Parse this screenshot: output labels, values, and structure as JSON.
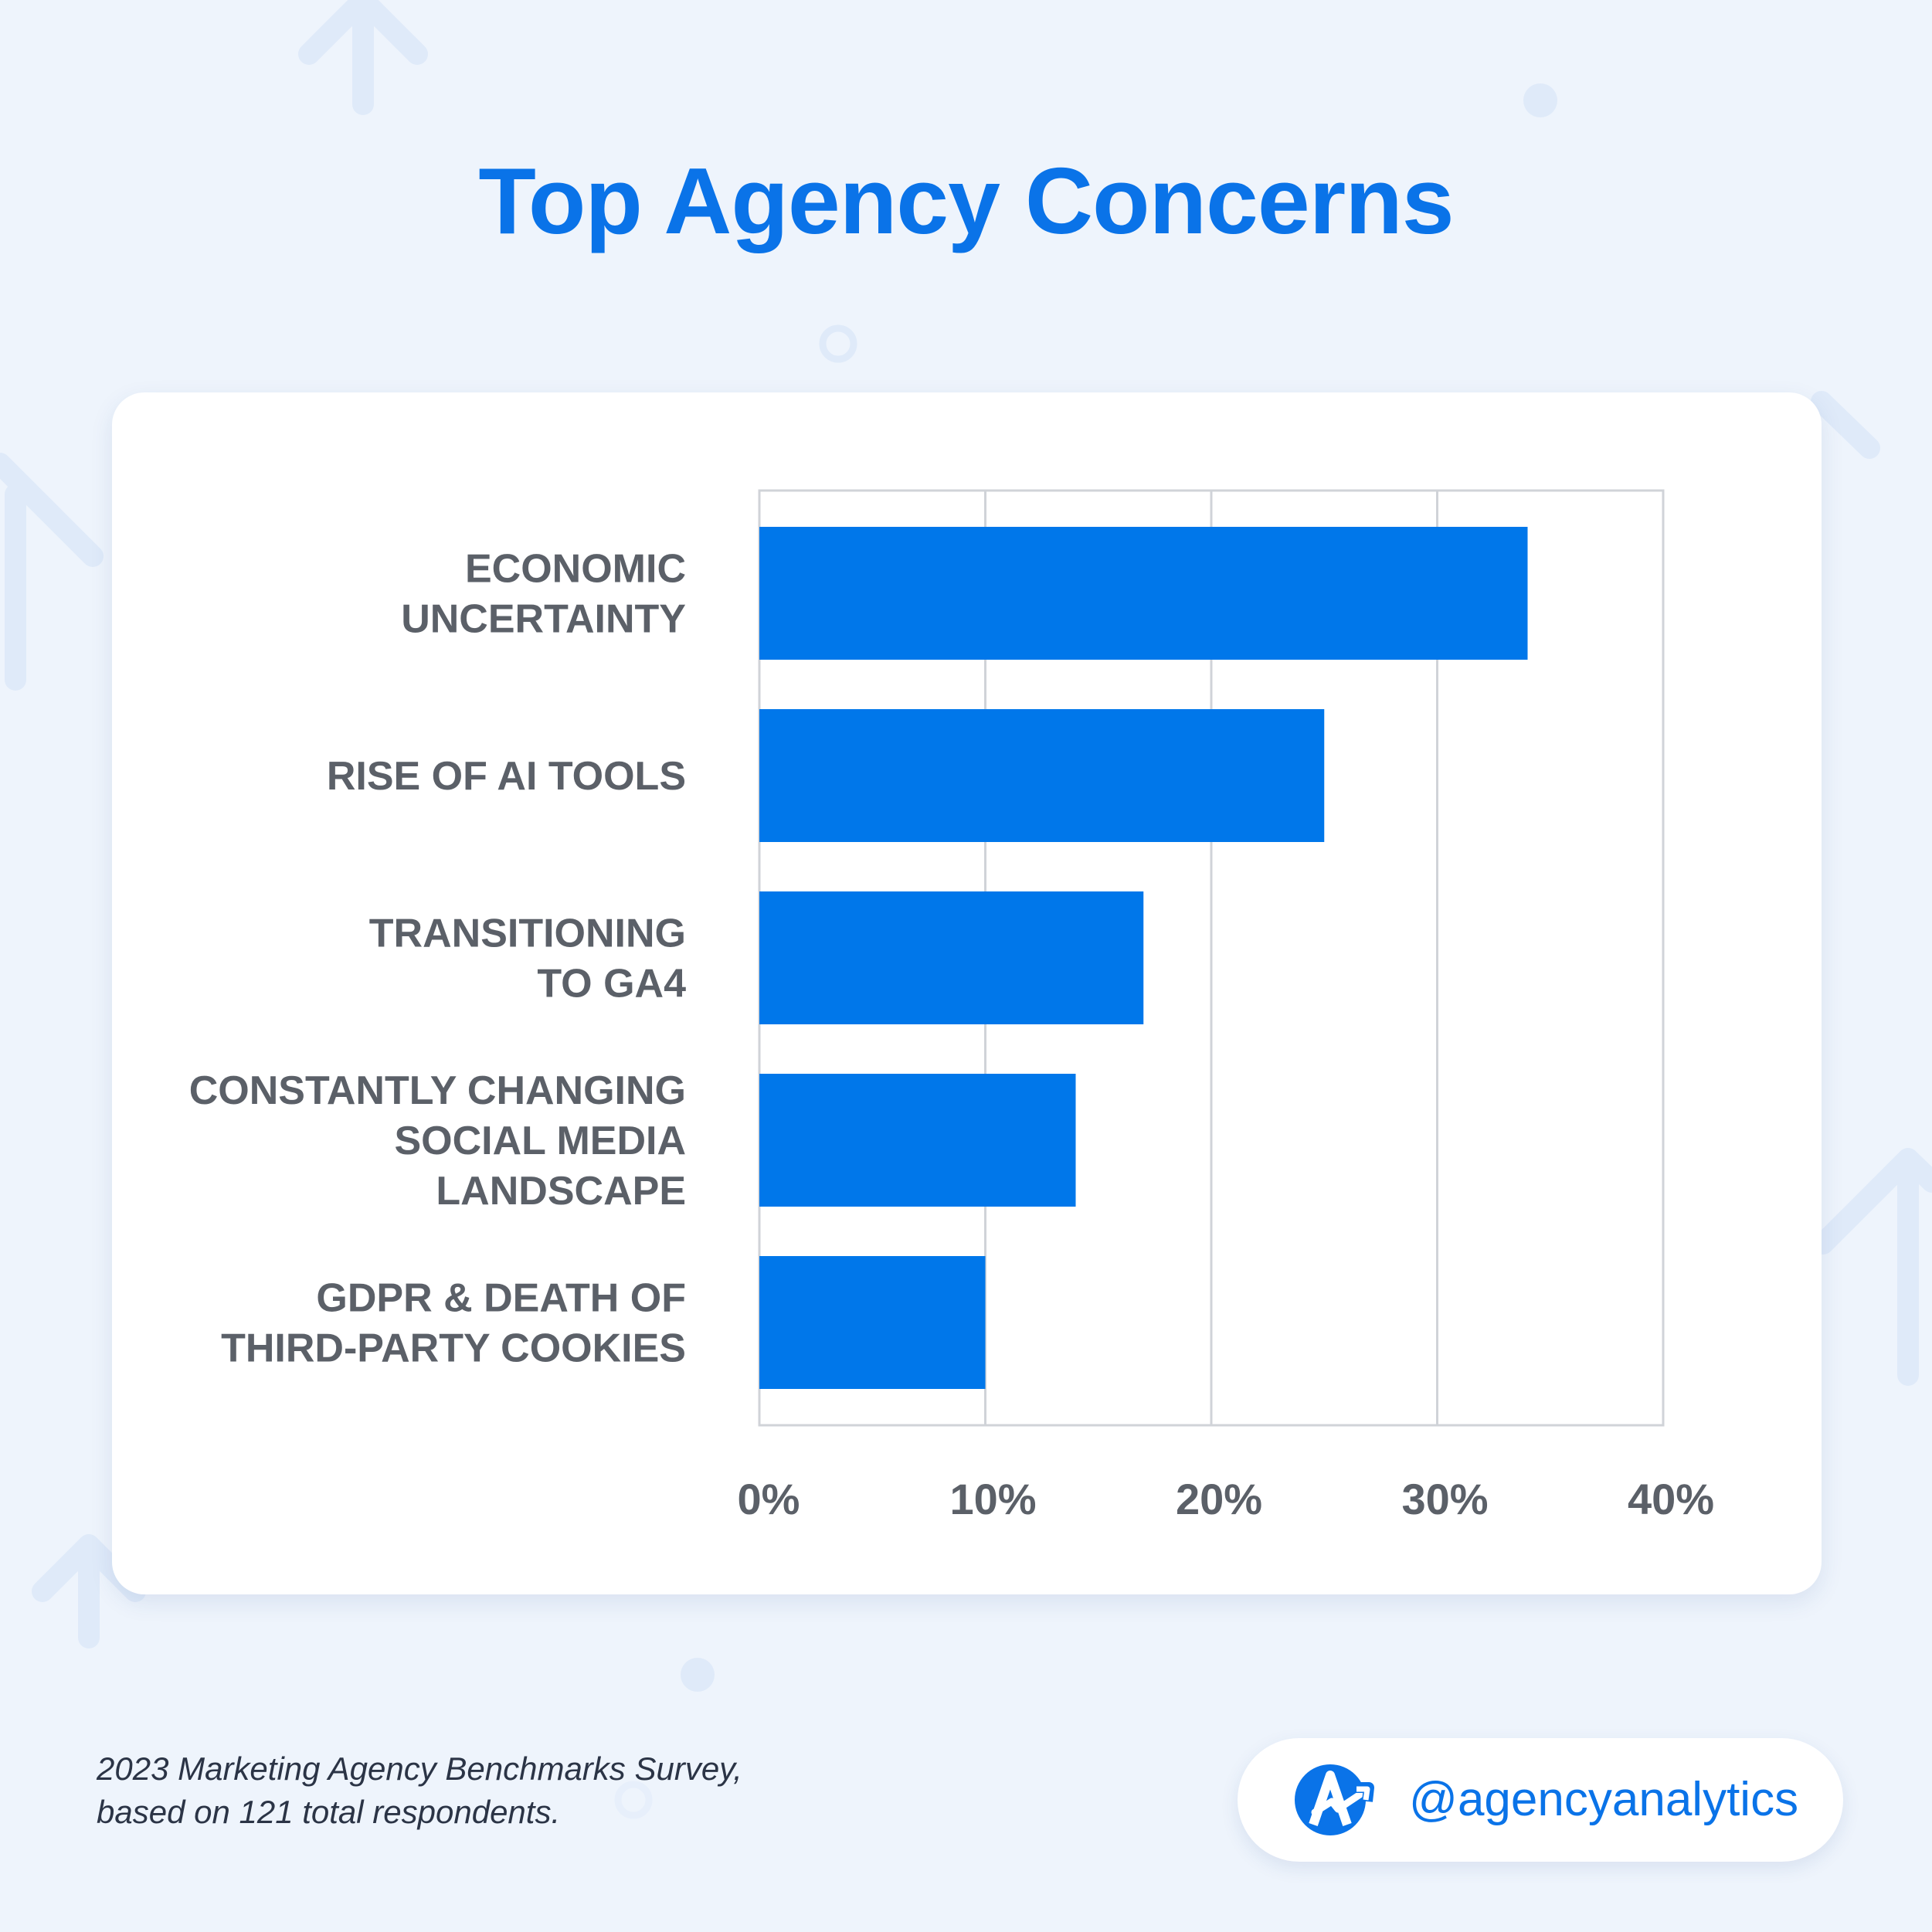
{
  "title": "Top Agency Concerns",
  "colors": {
    "background": "#eef4fc",
    "accent": "#0a73e8",
    "bar": "#0077ea",
    "label": "#5b6068",
    "grid": "#d0d3d8"
  },
  "chart_data": {
    "type": "bar",
    "orientation": "horizontal",
    "title": "Top Agency Concerns",
    "categories": [
      [
        "ECONOMIC",
        "UNCERTAINTY"
      ],
      [
        "RISE OF AI TOOLS"
      ],
      [
        "TRANSITIONING",
        "TO GA4"
      ],
      [
        "CONSTANTLY CHANGING",
        "SOCIAL MEDIA",
        "LANDSCAPE"
      ],
      [
        "GDPR & DEATH OF",
        "THIRD-PARTY COOKIES"
      ]
    ],
    "values": [
      34,
      25,
      17,
      14,
      10
    ],
    "x_ticks": [
      "0%",
      "10%",
      "20%",
      "30%",
      "40%"
    ],
    "xlim": [
      0,
      40
    ],
    "xlabel": "",
    "ylabel": "",
    "grid": true
  },
  "footer": {
    "source_line1": "2023 Marketing Agency Benchmarks Survey,",
    "source_line2": "based on 121 total respondents.",
    "handle": "@agencyanalytics",
    "logo_icon": "agencyanalytics-logo-icon"
  }
}
